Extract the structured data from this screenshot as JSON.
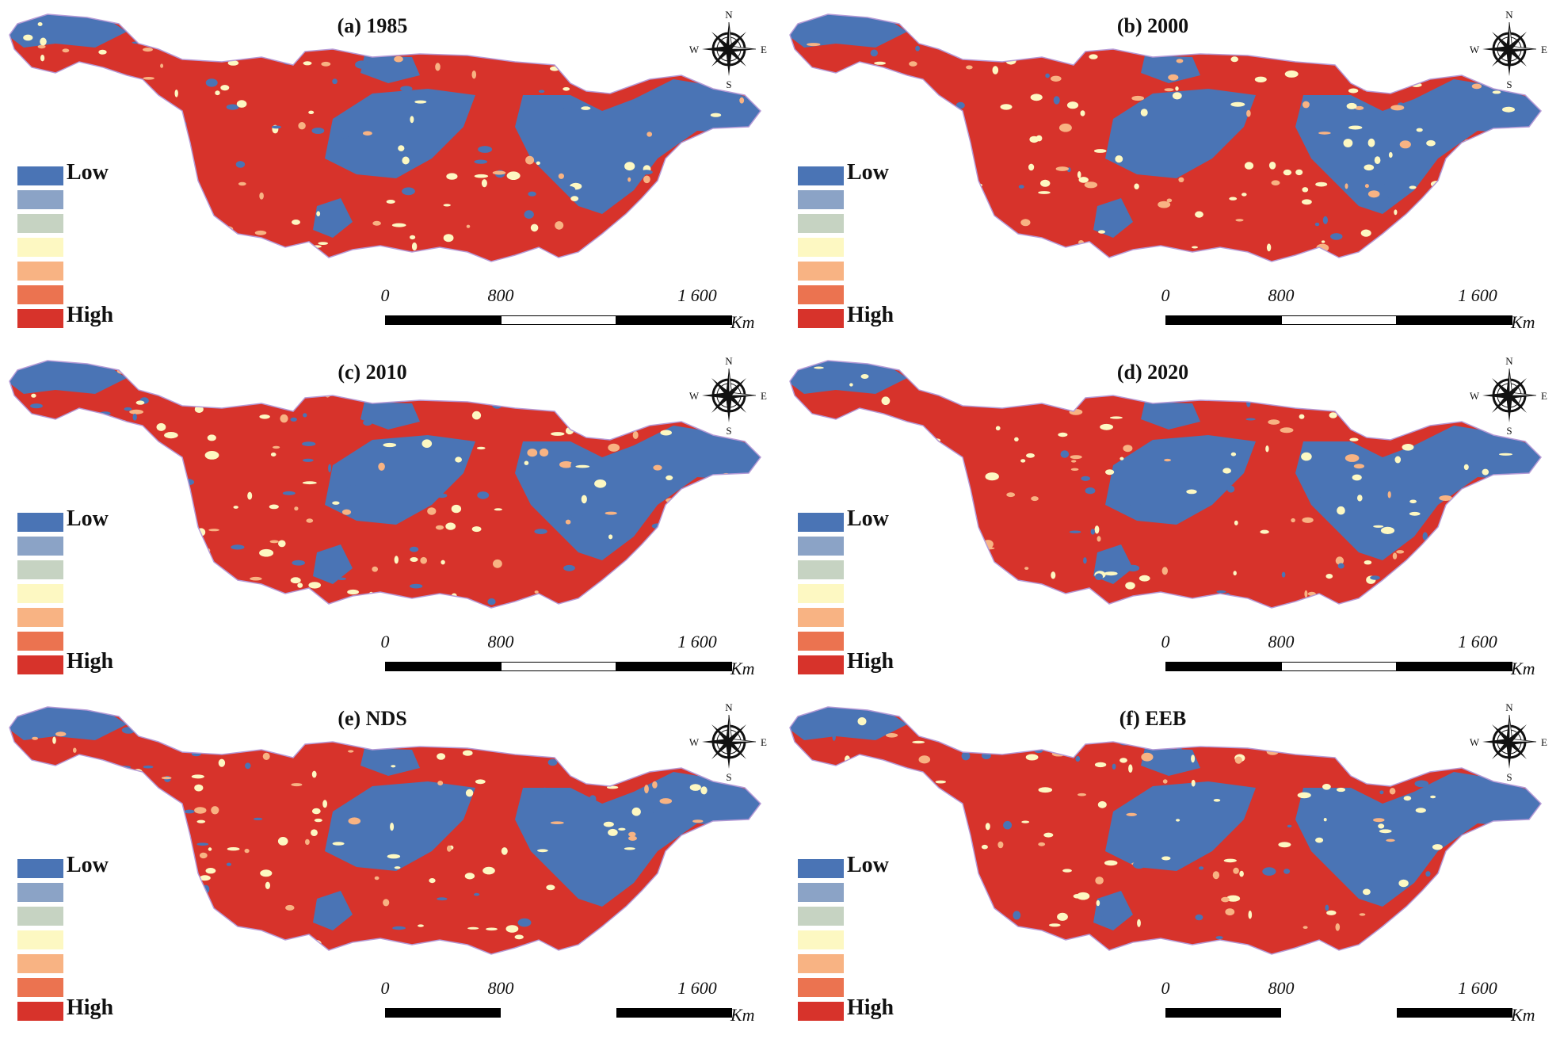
{
  "panels": [
    {
      "title": "(a) 1985",
      "ticks": [
        "0",
        "800",
        "1 600"
      ],
      "unit": "Km",
      "segments": [
        "black",
        "white",
        "black"
      ]
    },
    {
      "title": "(b) 2000",
      "ticks": [
        "0",
        "800",
        "1 600"
      ],
      "unit": "Km",
      "segments": [
        "black",
        "white",
        "black"
      ]
    },
    {
      "title": "(c) 2010",
      "ticks": [
        "0",
        "800",
        "1 600"
      ],
      "unit": "Km",
      "segments": [
        "black",
        "white",
        "black"
      ]
    },
    {
      "title": "(d) 2020",
      "ticks": [
        "0",
        "800",
        "1 600"
      ],
      "unit": "Km",
      "segments": [
        "black",
        "white",
        "black"
      ]
    },
    {
      "title": "(e) NDS",
      "ticks": [
        "0",
        "800",
        "1 600"
      ],
      "unit": "Km",
      "segments": [
        "black",
        "none",
        "black"
      ]
    },
    {
      "title": "(f) EEB",
      "ticks": [
        "0",
        "800",
        "1 600"
      ],
      "unit": "Km",
      "segments": [
        "black",
        "none",
        "black"
      ]
    }
  ],
  "legend": {
    "low_label": "Low",
    "high_label": "High",
    "colors": [
      "#4a74b5",
      "#8ba3c6",
      "#c6d3c2",
      "#fdf8c2",
      "#f8b383",
      "#eb7350",
      "#d7332b"
    ]
  },
  "compass": {
    "n": "N",
    "s": "S",
    "e": "E",
    "w": "W"
  },
  "map_colors": {
    "high": "#d7332b",
    "low": "#4a74b5",
    "mid": "#fdf8c2",
    "mid2": "#f8b383",
    "boundary": "#b59ad6"
  }
}
